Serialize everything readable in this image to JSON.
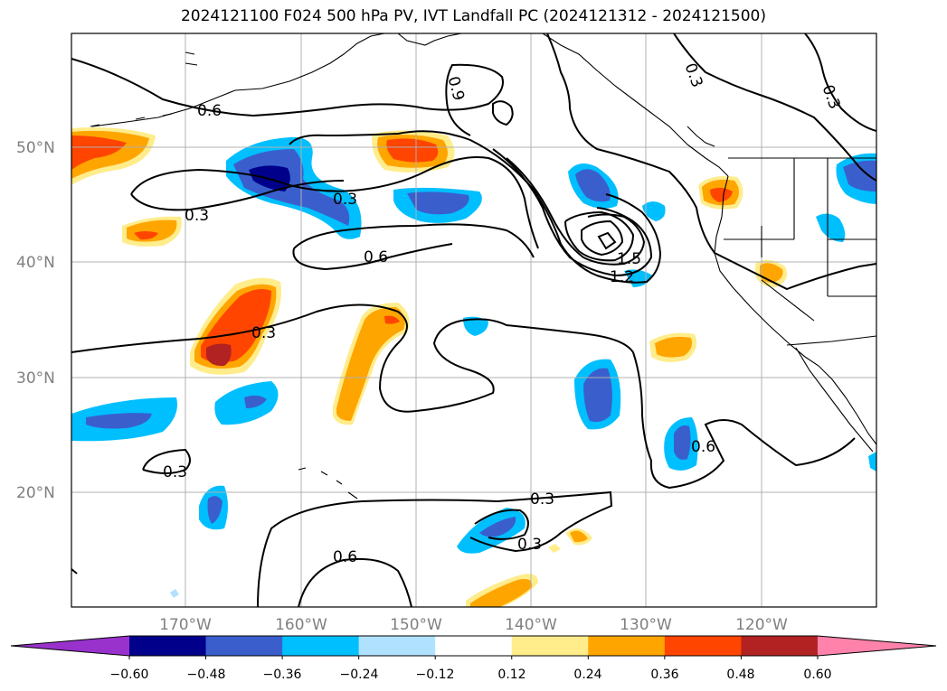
{
  "title": "2024121100 F024 500 hPa PV, IVT Landfall PC (2024121312 - 2024121500)",
  "lat_labels": [
    "50°N",
    "40°N",
    "30°N",
    "20°N"
  ],
  "lon_labels": [
    "170°W",
    "160°W",
    "150°W",
    "140°W",
    "130°W",
    "120°W"
  ],
  "contour_labels": [
    "0.6",
    "0.9",
    "0.3",
    "0.3",
    "0.3",
    "0.6",
    "1.2",
    "1.5",
    "0.3",
    "0.6",
    "0.3",
    "0.3",
    "0.3",
    "0.6",
    "0.3"
  ],
  "colorbar": {
    "ticks": [
      "−0.60",
      "−0.48",
      "−0.36",
      "−0.24",
      "−0.12",
      "0.12",
      "0.24",
      "0.36",
      "0.48",
      "0.60"
    ],
    "colors": [
      "#9932cc",
      "#00008b",
      "#3a5fcd",
      "#00bfff",
      "#b0e2ff",
      "#ffffff",
      "#ffec8b",
      "#ffa500",
      "#ff4500",
      "#b22222",
      "#ff82ab"
    ]
  }
}
